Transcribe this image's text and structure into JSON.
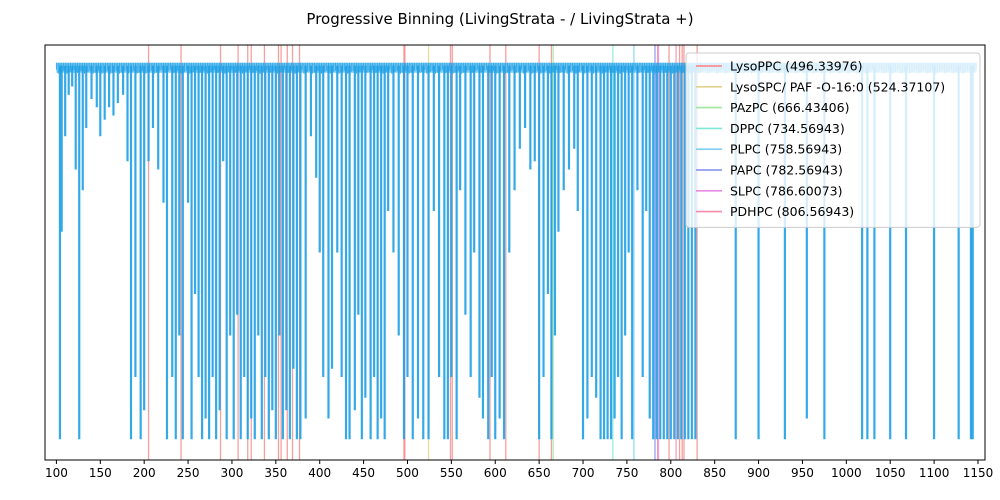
{
  "chart_data": {
    "type": "line",
    "title": "Progressive Binning (LivingStrata - / LivingStrata +)",
    "xlabel": "",
    "ylabel": "",
    "xlim": [
      87,
      1158
    ],
    "ylim": [
      0,
      1
    ],
    "x_ticks": [
      100,
      150,
      200,
      250,
      300,
      350,
      400,
      450,
      500,
      550,
      600,
      650,
      700,
      750,
      800,
      850,
      900,
      950,
      1000,
      1050,
      1100,
      1150
    ],
    "grid": false,
    "legend_position": "top-right",
    "trace": {
      "color": "#1ea0e6",
      "x_start": 100,
      "x_end": 1148,
      "baseline": 0.95,
      "dips": [
        [
          104,
          0.05
        ],
        [
          106,
          0.55
        ],
        [
          110,
          0.78
        ],
        [
          114,
          0.88
        ],
        [
          118,
          0.9
        ],
        [
          122,
          0.7
        ],
        [
          126,
          0.05
        ],
        [
          130,
          0.65
        ],
        [
          134,
          0.8
        ],
        [
          140,
          0.87
        ],
        [
          146,
          0.85
        ],
        [
          150,
          0.78
        ],
        [
          155,
          0.82
        ],
        [
          160,
          0.85
        ],
        [
          165,
          0.83
        ],
        [
          170,
          0.86
        ],
        [
          176,
          0.88
        ],
        [
          181,
          0.72
        ],
        [
          185,
          0.05
        ],
        [
          190,
          0.2
        ],
        [
          196,
          0.05
        ],
        [
          200,
          0.12
        ],
        [
          205,
          0.72
        ],
        [
          210,
          0.8
        ],
        [
          216,
          0.7
        ],
        [
          222,
          0.62
        ],
        [
          226,
          0.05
        ],
        [
          232,
          0.2
        ],
        [
          236,
          0.05
        ],
        [
          240,
          0.3
        ],
        [
          244,
          0.05
        ],
        [
          250,
          0.62
        ],
        [
          254,
          0.05
        ],
        [
          258,
          0.4
        ],
        [
          262,
          0.2
        ],
        [
          266,
          0.05
        ],
        [
          270,
          0.1
        ],
        [
          274,
          0.05
        ],
        [
          278,
          0.2
        ],
        [
          282,
          0.05
        ],
        [
          286,
          0.12
        ],
        [
          290,
          0.72
        ],
        [
          294,
          0.05
        ],
        [
          298,
          0.3
        ],
        [
          302,
          0.05
        ],
        [
          306,
          0.35
        ],
        [
          310,
          0.05
        ],
        [
          314,
          0.2
        ],
        [
          318,
          0.05
        ],
        [
          322,
          0.1
        ],
        [
          326,
          0.05
        ],
        [
          330,
          0.3
        ],
        [
          334,
          0.05
        ],
        [
          338,
          0.2
        ],
        [
          342,
          0.05
        ],
        [
          346,
          0.12
        ],
        [
          350,
          0.05
        ],
        [
          354,
          0.3
        ],
        [
          358,
          0.05
        ],
        [
          362,
          0.12
        ],
        [
          366,
          0.05
        ],
        [
          370,
          0.22
        ],
        [
          374,
          0.05
        ],
        [
          378,
          0.05
        ],
        [
          384,
          0.1
        ],
        [
          390,
          0.78
        ],
        [
          396,
          0.68
        ],
        [
          400,
          0.5
        ],
        [
          404,
          0.2
        ],
        [
          410,
          0.1
        ],
        [
          414,
          0.22
        ],
        [
          420,
          0.5
        ],
        [
          425,
          0.2
        ],
        [
          430,
          0.05
        ],
        [
          434,
          0.05
        ],
        [
          440,
          0.12
        ],
        [
          444,
          0.35
        ],
        [
          448,
          0.05
        ],
        [
          452,
          0.15
        ],
        [
          458,
          0.05
        ],
        [
          462,
          0.2
        ],
        [
          466,
          0.05
        ],
        [
          470,
          0.1
        ],
        [
          474,
          0.05
        ],
        [
          478,
          0.6
        ],
        [
          484,
          0.5
        ],
        [
          490,
          0.3
        ],
        [
          496,
          0.05
        ],
        [
          500,
          0.2
        ],
        [
          506,
          0.05
        ],
        [
          512,
          0.1
        ],
        [
          518,
          0.05
        ],
        [
          524,
          0.05
        ],
        [
          530,
          0.6
        ],
        [
          536,
          0.2
        ],
        [
          542,
          0.05
        ],
        [
          546,
          0.05
        ],
        [
          550,
          0.2
        ],
        [
          556,
          0.05
        ],
        [
          560,
          0.65
        ],
        [
          566,
          0.35
        ],
        [
          572,
          0.2
        ],
        [
          576,
          0.5
        ],
        [
          582,
          0.15
        ],
        [
          586,
          0.1
        ],
        [
          592,
          0.05
        ],
        [
          596,
          0.2
        ],
        [
          600,
          0.05
        ],
        [
          605,
          0.1
        ],
        [
          610,
          0.05
        ],
        [
          616,
          0.5
        ],
        [
          622,
          0.65
        ],
        [
          628,
          0.75
        ],
        [
          634,
          0.8
        ],
        [
          640,
          0.7
        ],
        [
          645,
          0.72
        ],
        [
          650,
          0.05
        ],
        [
          655,
          0.2
        ],
        [
          660,
          0.4
        ],
        [
          664,
          0.05
        ],
        [
          668,
          0.3
        ],
        [
          672,
          0.55
        ],
        [
          678,
          0.65
        ],
        [
          684,
          0.7
        ],
        [
          690,
          0.75
        ],
        [
          694,
          0.6
        ],
        [
          700,
          0.05
        ],
        [
          705,
          0.1
        ],
        [
          710,
          0.2
        ],
        [
          715,
          0.15
        ],
        [
          720,
          0.05
        ],
        [
          724,
          0.05
        ],
        [
          728,
          0.05
        ],
        [
          732,
          0.05
        ],
        [
          736,
          0.1
        ],
        [
          740,
          0.2
        ],
        [
          744,
          0.05
        ],
        [
          748,
          0.3
        ],
        [
          752,
          0.5
        ],
        [
          756,
          0.05
        ],
        [
          762,
          0.65
        ],
        [
          768,
          0.2
        ],
        [
          772,
          0.6
        ],
        [
          776,
          0.1
        ],
        [
          780,
          0.05
        ],
        [
          784,
          0.05
        ],
        [
          788,
          0.05
        ],
        [
          792,
          0.05
        ],
        [
          796,
          0.05
        ],
        [
          800,
          0.05
        ],
        [
          804,
          0.05
        ],
        [
          808,
          0.05
        ],
        [
          812,
          0.05
        ],
        [
          816,
          0.05
        ],
        [
          820,
          0.05
        ],
        [
          824,
          0.05
        ],
        [
          828,
          0.05
        ],
        [
          874,
          0.05
        ],
        [
          900,
          0.05
        ],
        [
          930,
          0.05
        ],
        [
          955,
          0.1
        ],
        [
          975,
          0.05
        ],
        [
          1018,
          0.05
        ],
        [
          1024,
          0.05
        ],
        [
          1032,
          0.05
        ],
        [
          1050,
          0.05
        ],
        [
          1068,
          0.05
        ],
        [
          1100,
          0.05
        ],
        [
          1128,
          0.05
        ],
        [
          1142,
          0.05
        ],
        [
          1144,
          0.05
        ]
      ]
    },
    "series": [
      {
        "name": "LysoPPC (496.33976)",
        "color": "#ff7f7f",
        "x": [
          496
        ]
      },
      {
        "name": "LysoSPC/  PAF -O-16:0 (524.37107)",
        "color": "#e0d28a",
        "x": [
          524
        ]
      },
      {
        "name": "PAzPC (666.43406)",
        "color": "#9fe79f",
        "x": [
          666
        ]
      },
      {
        "name": "DPPC (734.56943)",
        "color": "#7fe8d6",
        "x": [
          734
        ]
      },
      {
        "name": "PLPC (758.56943)",
        "color": "#7fd0f0",
        "x": [
          758
        ]
      },
      {
        "name": "PAPC (782.56943)",
        "color": "#7f8cf0",
        "x": [
          782
        ]
      },
      {
        "name": "SLPC (786.60073)",
        "color": "#e68ae6",
        "x": [
          786
        ]
      },
      {
        "name": "PDHPC (806.56943)",
        "color": "#f28ca8",
        "x": [
          806
        ]
      }
    ],
    "extra_markers": {
      "color": "#f08080",
      "x": [
        205,
        242,
        287,
        307,
        318,
        322,
        337,
        353,
        356,
        363,
        369,
        377,
        497,
        549,
        551,
        594,
        612,
        650,
        664,
        785,
        798,
        810,
        813,
        815,
        830
      ]
    }
  }
}
